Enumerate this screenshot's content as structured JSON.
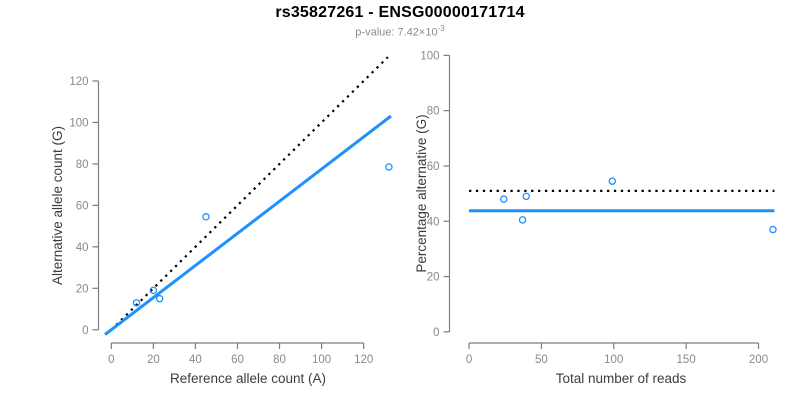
{
  "header": {
    "title": "rs35827261 - ENSG00000171714",
    "subtitle_text": "p-value: 7.42×10",
    "subtitle_exponent": "-3"
  },
  "colors": {
    "title": "#000000",
    "subtitle": "#8c8c8c",
    "accent_blue": "#1E90FF",
    "dotted_black": "#000000",
    "axis_line": "#7d7d7d",
    "tick_label": "#8a8a8a",
    "axis_title": "#3d3d3d",
    "background": "#ffffff",
    "point_fill": "none"
  },
  "chart_data": [
    {
      "type": "scatter",
      "name": "left-scatter",
      "title": "",
      "xlabel": "Reference allele count (A)",
      "ylabel": "Alternative allele count (G)",
      "xticks": [
        0,
        20,
        40,
        60,
        80,
        100,
        120
      ],
      "yticks": [
        0,
        20,
        40,
        60,
        80,
        100,
        120
      ],
      "xlim": [
        -3,
        133
      ],
      "ylim": [
        -3,
        133
      ],
      "grid": false,
      "legend": "none",
      "points": [
        {
          "x": 12,
          "y": 13
        },
        {
          "x": 20,
          "y": 19
        },
        {
          "x": 23,
          "y": 15
        },
        {
          "x": 45,
          "y": 54.5
        },
        {
          "x": 132,
          "y": 78.5
        }
      ],
      "lines": [
        {
          "name": "identity-dotted-line",
          "style": "dotted",
          "color": "#000000",
          "x1": 0,
          "y1": 0,
          "x2": 131.5,
          "y2": 131.5
        },
        {
          "name": "fitted-ratio-line",
          "style": "solid",
          "color": "#1E90FF",
          "x1": -3,
          "y1": -2.33,
          "x2": 133,
          "y2": 103.1
        }
      ]
    },
    {
      "type": "scatter",
      "name": "right-scatter",
      "title": "",
      "xlabel": "Total number of reads",
      "ylabel": "Percentage alternative (G)",
      "xticks": [
        0,
        50,
        100,
        150,
        200
      ],
      "yticks": [
        0,
        20,
        40,
        60,
        80,
        100
      ],
      "xlim": [
        -9,
        219
      ],
      "ylim": [
        -1.5,
        100.5
      ],
      "grid": false,
      "legend": "none",
      "points": [
        {
          "x": 24,
          "y": 48
        },
        {
          "x": 39.5,
          "y": 49
        },
        {
          "x": 37,
          "y": 40.5
        },
        {
          "x": 99,
          "y": 54.5
        },
        {
          "x": 210,
          "y": 37
        }
      ],
      "lines": [
        {
          "name": "expected-50pct-dotted-line",
          "style": "dotted",
          "color": "#000000",
          "x1": 0,
          "y1": 51,
          "x2": 211,
          "y2": 51
        },
        {
          "name": "mean-percentage-line",
          "style": "solid",
          "color": "#1E90FF",
          "x1": 0,
          "y1": 43.8,
          "x2": 211,
          "y2": 43.8
        }
      ]
    }
  ]
}
